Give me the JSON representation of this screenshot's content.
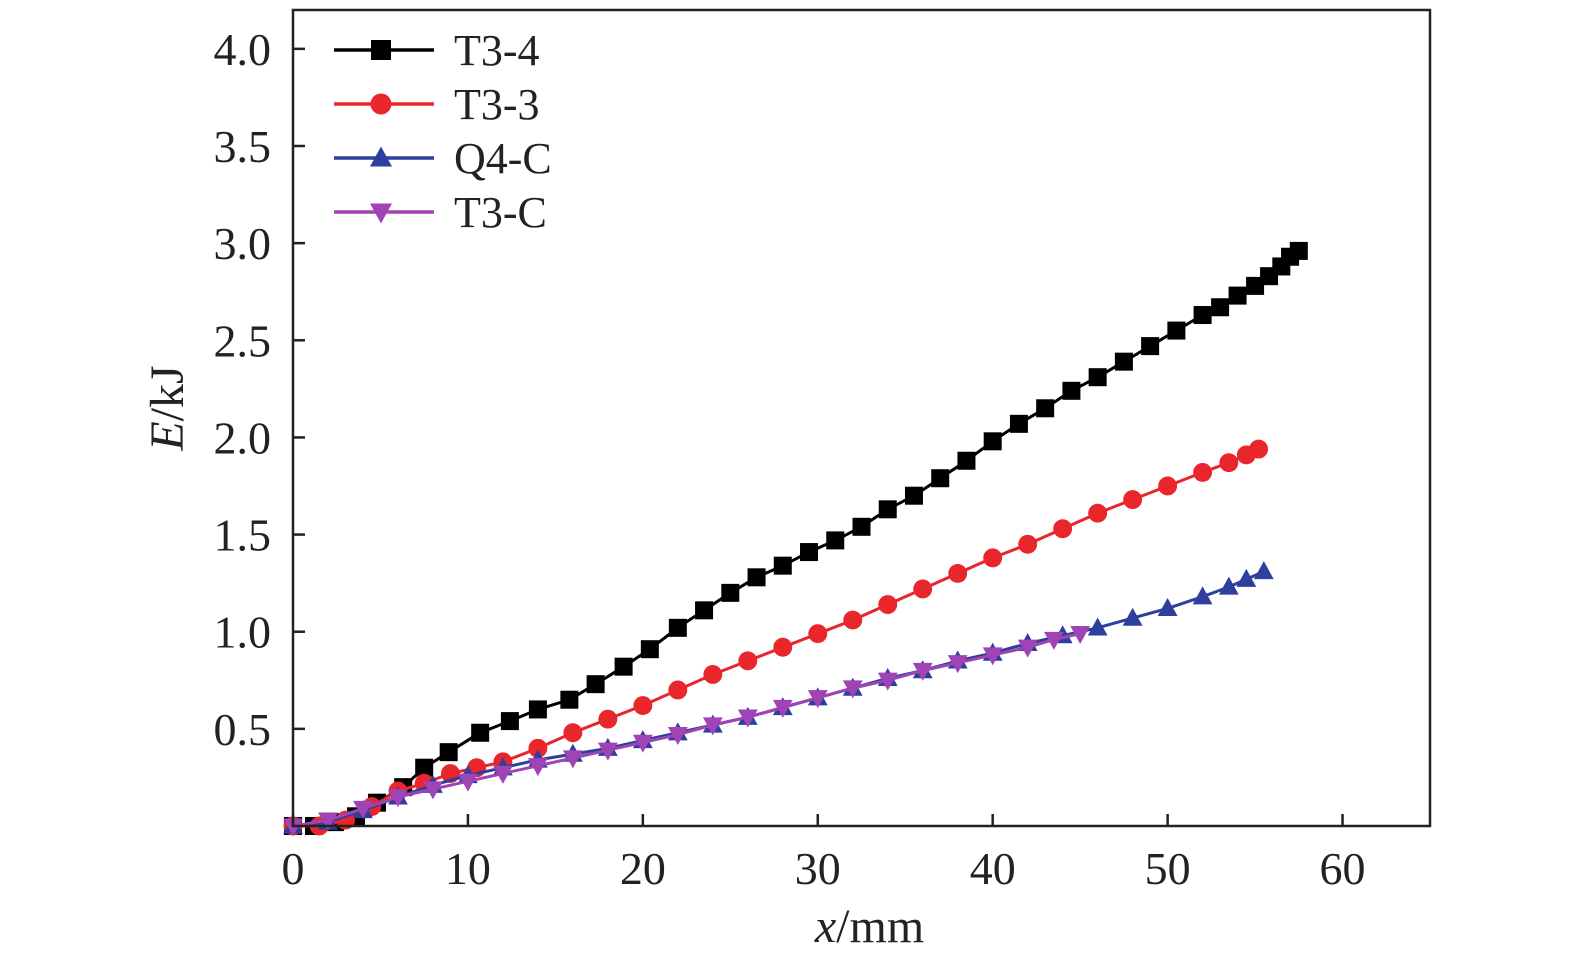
{
  "chart_data": {
    "type": "line",
    "title": "",
    "xlabel": {
      "var": "x",
      "unit": "/mm"
    },
    "ylabel": {
      "var": "E",
      "unit": "/kJ"
    },
    "xlim": [
      0,
      65
    ],
    "ylim": [
      0,
      4.2
    ],
    "x_ticks": [
      "0",
      "10",
      "20",
      "30",
      "40",
      "50",
      "60"
    ],
    "x_tick_values": [
      0,
      10,
      20,
      30,
      40,
      50,
      60
    ],
    "y_ticks": [
      "0.5",
      "1.0",
      "1.5",
      "2.0",
      "2.5",
      "3.0",
      "3.5",
      "4.0"
    ],
    "y_tick_values": [
      0.5,
      1.0,
      1.5,
      2.0,
      2.5,
      3.0,
      3.5,
      4.0
    ],
    "grid": false,
    "legend_position": "top-left",
    "series": [
      {
        "name": "T3-4",
        "color": "#000000",
        "marker": "square",
        "x": [
          0,
          1.2,
          2.4,
          3.6,
          4.8,
          6.3,
          7.5,
          8.9,
          10.7,
          12.4,
          14.0,
          15.8,
          17.3,
          18.9,
          20.4,
          22.0,
          23.5,
          25.0,
          26.5,
          28.0,
          29.5,
          31.0,
          32.5,
          34.0,
          35.5,
          37.0,
          38.5,
          40.0,
          41.5,
          43.0,
          44.5,
          46.0,
          47.5,
          49.0,
          50.5,
          52.0,
          53.0,
          54.0,
          55.0,
          55.8,
          56.5,
          57.0,
          57.5
        ],
        "y": [
          0.0,
          0.0,
          0.02,
          0.05,
          0.12,
          0.2,
          0.3,
          0.38,
          0.48,
          0.54,
          0.6,
          0.65,
          0.73,
          0.82,
          0.91,
          1.02,
          1.11,
          1.2,
          1.28,
          1.34,
          1.41,
          1.47,
          1.54,
          1.63,
          1.7,
          1.79,
          1.88,
          1.98,
          2.07,
          2.15,
          2.24,
          2.31,
          2.39,
          2.47,
          2.55,
          2.63,
          2.67,
          2.73,
          2.78,
          2.83,
          2.88,
          2.93,
          2.96
        ]
      },
      {
        "name": "T3-3",
        "color": "#e8262b",
        "marker": "circle",
        "x": [
          0,
          1.5,
          3.0,
          4.5,
          6.0,
          7.5,
          9.0,
          10.5,
          12.0,
          14.0,
          16.0,
          18.0,
          20.0,
          22.0,
          24.0,
          26.0,
          28.0,
          30.0,
          32.0,
          34.0,
          36.0,
          38.0,
          40.0,
          42.0,
          44.0,
          46.0,
          48.0,
          50.0,
          52.0,
          53.5,
          54.5,
          55.2
        ],
        "y": [
          0.0,
          0.0,
          0.03,
          0.1,
          0.18,
          0.22,
          0.27,
          0.3,
          0.33,
          0.4,
          0.48,
          0.55,
          0.62,
          0.7,
          0.78,
          0.85,
          0.92,
          0.99,
          1.06,
          1.14,
          1.22,
          1.3,
          1.38,
          1.45,
          1.53,
          1.61,
          1.68,
          1.75,
          1.82,
          1.87,
          1.91,
          1.94
        ]
      },
      {
        "name": "Q4-C",
        "color": "#2e3f9e",
        "marker": "triangle-up",
        "x": [
          0,
          2.0,
          4.0,
          6.0,
          8.0,
          10.0,
          12.0,
          14.0,
          16.0,
          18.0,
          20.0,
          22.0,
          24.0,
          26.0,
          28.0,
          30.0,
          32.0,
          34.0,
          36.0,
          38.0,
          40.0,
          42.0,
          44.0,
          46.0,
          48.0,
          50.0,
          52.0,
          53.5,
          54.5,
          55.5
        ],
        "y": [
          0.0,
          0.02,
          0.08,
          0.15,
          0.21,
          0.26,
          0.3,
          0.34,
          0.37,
          0.4,
          0.44,
          0.48,
          0.52,
          0.56,
          0.61,
          0.66,
          0.71,
          0.76,
          0.8,
          0.85,
          0.89,
          0.94,
          0.98,
          1.02,
          1.07,
          1.12,
          1.18,
          1.23,
          1.27,
          1.31
        ]
      },
      {
        "name": "T3-C",
        "color": "#a043b4",
        "marker": "triangle-down",
        "x": [
          0,
          2.0,
          4.0,
          6.0,
          8.0,
          10.0,
          12.0,
          14.0,
          16.0,
          18.0,
          20.0,
          22.0,
          24.0,
          26.0,
          28.0,
          30.0,
          32.0,
          34.0,
          36.0,
          38.0,
          40.0,
          42.0,
          43.5,
          45.0
        ],
        "y": [
          0.0,
          0.03,
          0.09,
          0.15,
          0.19,
          0.23,
          0.27,
          0.31,
          0.35,
          0.39,
          0.43,
          0.47,
          0.52,
          0.56,
          0.61,
          0.66,
          0.71,
          0.75,
          0.8,
          0.84,
          0.88,
          0.92,
          0.96,
          0.99
        ]
      }
    ]
  }
}
